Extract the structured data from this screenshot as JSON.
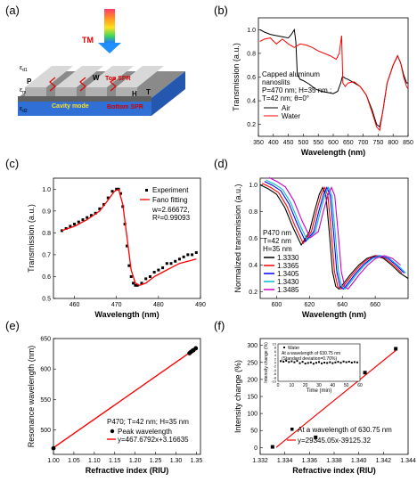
{
  "panels": {
    "a": {
      "label": "(a)",
      "tm": "TM",
      "eps_top": "ε",
      "eps_top_sub": "d1",
      "eps_bottom": "ε",
      "eps_bottom_sub": "d2",
      "eps_mid": "ε",
      "eps_mid_sub": "m",
      "P": "P",
      "W": "W",
      "H": "H",
      "T": "T",
      "top_spr": "Top SPR",
      "bottom_spr": "Bottom SPR",
      "cavity": "Cavity mode"
    },
    "b": {
      "label": "(b)"
    },
    "c": {
      "label": "(c)"
    },
    "d": {
      "label": "(d)"
    },
    "e": {
      "label": "(e)"
    },
    "f": {
      "label": "(f)"
    }
  },
  "chart_data": [
    {
      "id": "b",
      "type": "line",
      "xlabel": "Wavelength (nm)",
      "ylabel": "Transmission (a.u.)",
      "xlim": [
        350,
        850
      ],
      "ylim": [
        0.1,
        1.1
      ],
      "xticks": [
        350,
        400,
        450,
        500,
        550,
        600,
        650,
        700,
        750,
        800,
        850
      ],
      "yticks": [
        0.2,
        0.4,
        0.6,
        0.8,
        1.0
      ],
      "annotation": [
        "Capped aluminum",
        "nanoslits",
        "P=470 nm; H=35 nm ;",
        "T=42 nm; θ=0°"
      ],
      "series": [
        {
          "name": "Air",
          "color": "#000000",
          "x": [
            355,
            370,
            390,
            410,
            430,
            450,
            460,
            470,
            475,
            480,
            490,
            500,
            520,
            540,
            560,
            580,
            600,
            615,
            625,
            630,
            635,
            640,
            650,
            670,
            690,
            710,
            730,
            745,
            755,
            765,
            780,
            800,
            815,
            825,
            835,
            845,
            850
          ],
          "y": [
            1.0,
            0.98,
            0.96,
            0.95,
            0.94,
            0.93,
            0.96,
            1.0,
            0.9,
            0.62,
            0.58,
            0.57,
            0.54,
            0.5,
            0.48,
            0.47,
            0.46,
            0.48,
            0.55,
            0.6,
            0.6,
            0.59,
            0.58,
            0.55,
            0.52,
            0.45,
            0.32,
            0.2,
            0.18,
            0.3,
            0.55,
            0.7,
            0.78,
            0.72,
            0.62,
            0.55,
            0.55
          ]
        },
        {
          "name": "Water",
          "color": "#ff0000",
          "x": [
            355,
            370,
            390,
            410,
            430,
            450,
            470,
            490,
            510,
            530,
            550,
            570,
            590,
            610,
            620,
            628,
            632,
            640,
            650,
            670,
            690,
            710,
            730,
            745,
            755,
            765,
            780,
            800,
            815,
            825,
            835,
            845,
            850
          ],
          "y": [
            0.9,
            0.92,
            0.93,
            0.88,
            0.92,
            0.88,
            0.85,
            0.88,
            0.87,
            0.85,
            0.82,
            0.8,
            0.78,
            0.75,
            0.8,
            0.95,
            0.55,
            0.52,
            0.55,
            0.56,
            0.52,
            0.45,
            0.3,
            0.18,
            0.15,
            0.3,
            0.55,
            0.7,
            0.78,
            0.72,
            0.6,
            0.52,
            0.5
          ]
        }
      ]
    },
    {
      "id": "c",
      "type": "scatter",
      "xlabel": "Wavelength (nm)",
      "ylabel": "Transmission (a.u.)",
      "xlim": [
        455,
        490
      ],
      "ylim": [
        0.5,
        1.05
      ],
      "xticks": [
        460,
        470,
        480,
        490
      ],
      "yticks": [
        0.5,
        0.6,
        0.7,
        0.8,
        0.9,
        1.0
      ],
      "legend": [
        "Experiment",
        "Fano fitting"
      ],
      "annotation": [
        "w=2.66672,",
        "R²=0.99093"
      ],
      "series": [
        {
          "name": "Experiment",
          "color": "#000000",
          "x": [
            457,
            458,
            459,
            460,
            461,
            462,
            463,
            464,
            465,
            466,
            467,
            468,
            469,
            470,
            470.5,
            471,
            471.5,
            472,
            472.5,
            473,
            473.5,
            474,
            474.5,
            475,
            476,
            477,
            478,
            479,
            480,
            481,
            482,
            483,
            484,
            485,
            486,
            487,
            488,
            489
          ],
          "y": [
            0.81,
            0.82,
            0.83,
            0.84,
            0.85,
            0.86,
            0.87,
            0.88,
            0.89,
            0.91,
            0.93,
            0.96,
            0.99,
            1.0,
            1.0,
            0.98,
            0.92,
            0.84,
            0.74,
            0.65,
            0.6,
            0.57,
            0.56,
            0.56,
            0.57,
            0.59,
            0.6,
            0.62,
            0.63,
            0.64,
            0.66,
            0.66,
            0.67,
            0.68,
            0.69,
            0.7,
            0.7,
            0.71
          ]
        },
        {
          "name": "Fano fitting",
          "color": "#ff0000",
          "x": [
            457,
            460,
            463,
            466,
            468,
            469.5,
            470.5,
            471.5,
            472.5,
            473.5,
            474.5,
            475.5,
            477,
            479,
            481,
            483,
            485,
            487,
            489
          ],
          "y": [
            0.81,
            0.83,
            0.86,
            0.9,
            0.95,
            0.99,
            1.0,
            0.93,
            0.78,
            0.63,
            0.57,
            0.56,
            0.57,
            0.6,
            0.62,
            0.64,
            0.66,
            0.67,
            0.68
          ]
        }
      ]
    },
    {
      "id": "d",
      "type": "line",
      "xlabel": "Wavelength (nm)",
      "ylabel": "Normalized transmission (a.u.)",
      "xlim": [
        590,
        680
      ],
      "ylim": [
        0.15,
        1.05
      ],
      "xticks": [
        600,
        620,
        640,
        660
      ],
      "yticks": [
        0.2,
        0.4,
        0.6,
        0.8,
        1.0
      ],
      "legend_title": [
        "P470 nm",
        "T=42 nm",
        "H=35 nm"
      ],
      "series": [
        {
          "name": "1.3330",
          "color": "#000000",
          "shift": 0
        },
        {
          "name": "1.3365",
          "color": "#ff0000",
          "shift": 1.2
        },
        {
          "name": "1.3405",
          "color": "#0000ff",
          "shift": 2.6
        },
        {
          "name": "1.3430",
          "color": "#00bcd4",
          "shift": 3.6
        },
        {
          "name": "1.3485",
          "color": "#cc00cc",
          "shift": 5.4
        }
      ],
      "base_x": [
        590,
        595,
        600,
        605,
        610,
        615,
        620,
        623,
        626,
        628,
        630,
        632,
        634,
        636,
        638,
        640,
        645,
        650,
        655,
        660,
        665,
        670,
        675,
        680
      ],
      "base_y": [
        1.0,
        0.97,
        0.93,
        0.83,
        0.68,
        0.55,
        0.65,
        0.8,
        0.93,
        0.98,
        0.92,
        0.65,
        0.35,
        0.24,
        0.22,
        0.25,
        0.33,
        0.4,
        0.45,
        0.47,
        0.45,
        0.4,
        0.34,
        0.3
      ]
    },
    {
      "id": "e",
      "type": "scatter",
      "xlabel": "Refractive index (RIU)",
      "ylabel": "Resonance wavelength (nm)",
      "xlim": [
        1.0,
        1.36
      ],
      "ylim": [
        460,
        650
      ],
      "xticks": [
        1.0,
        1.05,
        1.1,
        1.15,
        1.2,
        1.25,
        1.3,
        1.35
      ],
      "yticks": [
        500,
        550,
        600,
        650
      ],
      "annotation": [
        "P470; T=42 nm; H=35 nm"
      ],
      "legend": [
        "Peak wavelength",
        "y=467.6792x+3.16635"
      ],
      "fit": {
        "slope": 467.6792,
        "intercept": 3.16635
      },
      "series": [
        {
          "name": "Peak wavelength",
          "color": "#000000",
          "x": [
            1.0,
            1.333,
            1.3365,
            1.3405,
            1.343,
            1.3485
          ],
          "y": [
            470,
            626,
            628,
            630,
            631,
            634
          ]
        }
      ]
    },
    {
      "id": "f",
      "type": "scatter",
      "xlabel": "Refractive index (RIU)",
      "ylabel": "Intensity change (%)",
      "xlim": [
        1.332,
        1.344
      ],
      "ylim": [
        -20,
        320
      ],
      "xticks": [
        1.332,
        1.334,
        1.336,
        1.338,
        1.34,
        1.342,
        1.344
      ],
      "yticks": [
        0,
        50,
        100,
        150,
        200,
        250,
        300
      ],
      "legend": [
        "At a wavelength of 630.75 nm",
        "y=29345.05x-39125.32"
      ],
      "fit": {
        "slope": 29345.05,
        "intercept": -39125.32
      },
      "series": [
        {
          "name": "At a wavelength of 630.75 nm",
          "color": "#000000",
          "x": [
            1.333,
            1.3365,
            1.3405,
            1.343
          ],
          "y": [
            2,
            30,
            220,
            290
          ]
        }
      ],
      "inset": {
        "xlabel": "Time (min)",
        "ylabel": "Intensity change (%)",
        "xlim": [
          0,
          60
        ],
        "ylim": [
          -10,
          10
        ],
        "xticks": [
          0,
          10,
          20,
          30,
          40,
          50,
          60
        ],
        "yticks": [
          -10,
          -8,
          -6,
          -4,
          -2,
          0,
          2,
          4,
          6,
          8,
          10
        ],
        "legend": [
          "Water",
          "At a wavelength of 630.75 nm",
          "(Standard deviation=0.70%)"
        ],
        "x": [
          2,
          4,
          6,
          8,
          10,
          12,
          14,
          16,
          18,
          20,
          22,
          24,
          26,
          28,
          30,
          32,
          34,
          36,
          38,
          40,
          42,
          44,
          46,
          48,
          50,
          52,
          54,
          56,
          58
        ],
        "y": [
          0.8,
          0.5,
          1.0,
          0.3,
          0.7,
          0.2,
          0.9,
          -0.3,
          0.4,
          -0.5,
          -0.2,
          0.1,
          -0.6,
          -0.1,
          0.3,
          -0.4,
          0.0,
          -0.2,
          0.2,
          -0.3,
          0.1,
          0.4,
          -0.1,
          0.6,
          0.2,
          0.5,
          0.0,
          0.3,
          0.1
        ]
      }
    }
  ]
}
